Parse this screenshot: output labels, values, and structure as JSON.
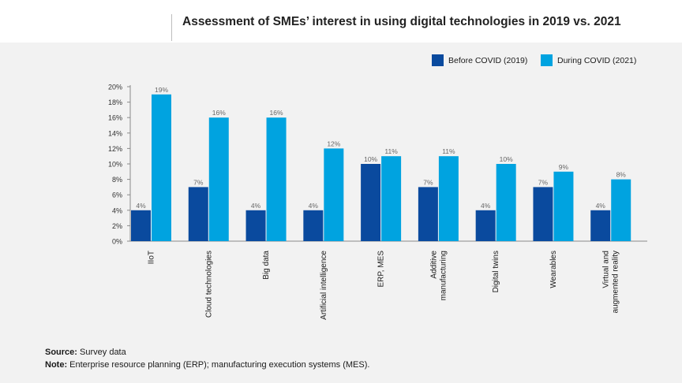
{
  "header": {
    "title": "Assessment of SMEs’ interest in using digital technologies in 2019 vs. 2021"
  },
  "legend": {
    "items": [
      {
        "label": "Before COVID (2019)",
        "color": "#0a4a9e"
      },
      {
        "label": "During COVID (2021)",
        "color": "#00a3e0"
      }
    ]
  },
  "chart_data": {
    "type": "bar",
    "categories": [
      "IIoT",
      "Cloud technologies",
      "Big data",
      "Artificial intelligence",
      "ERP, MES",
      "Additive manufacturing",
      "Digital twins",
      "Wearables",
      "Virtual and augmented reality"
    ],
    "category_lines": [
      [
        "IIoT"
      ],
      [
        "Cloud technologies"
      ],
      [
        "Big data"
      ],
      [
        "Artificial intelligence"
      ],
      [
        "ERP, MES"
      ],
      [
        "Additive",
        "manufacturing"
      ],
      [
        "Digital twins"
      ],
      [
        "Wearables"
      ],
      [
        "Virtual and",
        "augmented reality"
      ]
    ],
    "series": [
      {
        "name": "Before COVID (2019)",
        "color": "#0a4a9e",
        "values": [
          4,
          7,
          4,
          4,
          10,
          7,
          4,
          7,
          4
        ]
      },
      {
        "name": "During COVID (2021)",
        "color": "#00a3e0",
        "values": [
          19,
          16,
          16,
          12,
          11,
          11,
          10,
          9,
          8
        ]
      }
    ],
    "value_labels": [
      [
        "4%",
        "7%",
        "4%",
        "4%",
        "10%",
        "7%",
        "4%",
        "7%",
        "4%"
      ],
      [
        "19%",
        "16%",
        "16%",
        "12%",
        "11%",
        "11%",
        "10%",
        "9%",
        "8%"
      ]
    ],
    "yticks": [
      "0%",
      "2%",
      "4%",
      "6%",
      "8%",
      "10%",
      "12%",
      "14%",
      "16%",
      "18%",
      "20%"
    ],
    "ylim": [
      0,
      20
    ],
    "grid": false,
    "legend_position": "top-right"
  },
  "footer": {
    "source_label": "Source:",
    "source_text": "Survey data",
    "note_label": "Note:",
    "note_text": "Enterprise resource planning (ERP); manufacturing execution systems (MES)."
  }
}
